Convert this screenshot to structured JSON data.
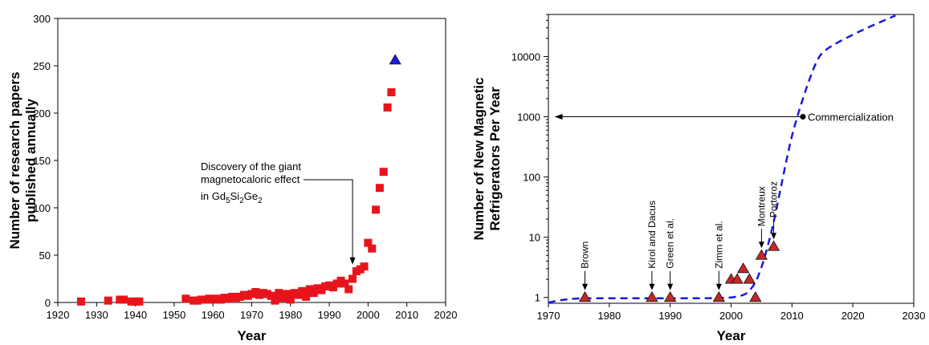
{
  "chart_data": [
    {
      "type": "scatter",
      "xlabel": "Year",
      "ylabel": "Number of research papers published annually",
      "ylabel_lines": [
        "Number of research papers",
        "published annually"
      ],
      "xlim": [
        1920,
        2020
      ],
      "ylim": [
        0,
        300
      ],
      "xticks": [
        1920,
        1930,
        1940,
        1950,
        1960,
        1970,
        1980,
        1990,
        2000,
        2010,
        2020
      ],
      "yticks": [
        0,
        50,
        100,
        150,
        200,
        250,
        300
      ],
      "grid": false,
      "series": [
        {
          "marker": "square",
          "color": "#e8141c",
          "points": [
            [
              1926,
              1
            ],
            [
              1933,
              2
            ],
            [
              1936,
              3
            ],
            [
              1937,
              3
            ],
            [
              1939,
              1
            ],
            [
              1940,
              1
            ],
            [
              1941,
              1
            ],
            [
              1953,
              4
            ],
            [
              1955,
              2
            ],
            [
              1956,
              2
            ],
            [
              1957,
              3
            ],
            [
              1958,
              3
            ],
            [
              1959,
              4
            ],
            [
              1960,
              3
            ],
            [
              1961,
              4
            ],
            [
              1962,
              3
            ],
            [
              1963,
              5
            ],
            [
              1964,
              4
            ],
            [
              1965,
              6
            ],
            [
              1966,
              5
            ],
            [
              1967,
              6
            ],
            [
              1968,
              8
            ],
            [
              1969,
              7
            ],
            [
              1970,
              9
            ],
            [
              1971,
              11
            ],
            [
              1972,
              8
            ],
            [
              1973,
              10
            ],
            [
              1974,
              9
            ],
            [
              1975,
              7
            ],
            [
              1976,
              2
            ],
            [
              1977,
              10
            ],
            [
              1978,
              5
            ],
            [
              1979,
              9
            ],
            [
              1980,
              3
            ],
            [
              1981,
              10
            ],
            [
              1982,
              8
            ],
            [
              1983,
              12
            ],
            [
              1984,
              6
            ],
            [
              1985,
              14
            ],
            [
              1986,
              10
            ],
            [
              1987,
              15
            ],
            [
              1988,
              13
            ],
            [
              1989,
              17
            ],
            [
              1990,
              18
            ],
            [
              1991,
              16
            ],
            [
              1992,
              20
            ],
            [
              1993,
              23
            ],
            [
              1994,
              20
            ],
            [
              1995,
              14
            ],
            [
              1996,
              25
            ],
            [
              1997,
              33
            ],
            [
              1998,
              35
            ],
            [
              1999,
              38
            ],
            [
              2000,
              63
            ],
            [
              2001,
              57
            ],
            [
              2002,
              98
            ],
            [
              2003,
              121
            ],
            [
              2004,
              138
            ],
            [
              2005,
              206
            ],
            [
              2006,
              222
            ]
          ]
        },
        {
          "marker": "triangle",
          "color": "#1a1adb",
          "points": [
            [
              2007,
              256
            ]
          ]
        }
      ],
      "annotation": {
        "lines": [
          "Discovery of the giant",
          "magnetocaloric effect"
        ],
        "formula_prefix": "in Gd",
        "sub1": "5",
        "mid1": "Si",
        "sub2": "2",
        "mid2": "Ge",
        "sub3": "2",
        "arrow_to": [
          1996,
          40
        ]
      }
    },
    {
      "type": "scatter",
      "xlabel": "Year",
      "ylabel": "Number of New Magnetic Refrigerators Per Year",
      "ylabel_lines": [
        "Number of New Magnetic",
        "Refrigerators Per Year"
      ],
      "xlim": [
        1970,
        2030
      ],
      "ylim": [
        0.8,
        50000
      ],
      "yscale": "log",
      "xticks": [
        1970,
        1980,
        1990,
        2000,
        2010,
        2020,
        2030
      ],
      "yticks": [
        1,
        10,
        100,
        1000,
        10000
      ],
      "grid": false,
      "triangles": {
        "color": "#c0282a",
        "points": [
          [
            1976,
            1
          ],
          [
            1987,
            1
          ],
          [
            1990,
            1
          ],
          [
            1998,
            1
          ],
          [
            2000,
            2
          ],
          [
            2001,
            2
          ],
          [
            2002,
            3
          ],
          [
            2003,
            2
          ],
          [
            2004,
            1
          ],
          [
            2005,
            5
          ],
          [
            2007,
            7
          ]
        ]
      },
      "curve": {
        "color": "#1a1adb",
        "style": "dashed",
        "points": [
          [
            1970,
            0.82
          ],
          [
            1972,
            0.9
          ],
          [
            1975,
            0.96
          ],
          [
            1980,
            0.97
          ],
          [
            1985,
            0.97
          ],
          [
            1990,
            0.97
          ],
          [
            1995,
            0.97
          ],
          [
            1998,
            0.98
          ],
          [
            2000,
            1.0
          ],
          [
            2002,
            1.1
          ],
          [
            2003,
            1.3
          ],
          [
            2004,
            1.8
          ],
          [
            2005,
            3.2
          ],
          [
            2006,
            7
          ],
          [
            2007,
            18
          ],
          [
            2008,
            55
          ],
          [
            2009,
            170
          ],
          [
            2010,
            480
          ],
          [
            2011,
            1100
          ],
          [
            2012,
            2300
          ],
          [
            2013,
            4500
          ],
          [
            2014,
            8000
          ],
          [
            2015,
            11500
          ],
          [
            2017,
            16000
          ],
          [
            2020,
            23000
          ],
          [
            2023,
            32000
          ],
          [
            2027,
            48000
          ]
        ]
      },
      "labels": [
        {
          "text": "Brown",
          "x": 1976,
          "y": 1
        },
        {
          "text": "Kirol and Dacus",
          "x": 1987,
          "y": 1
        },
        {
          "text": "Green et al.",
          "x": 1990,
          "y": 1
        },
        {
          "text": "Zimm et al.",
          "x": 1998,
          "y": 1
        },
        {
          "text": "Montreux",
          "x": 2005,
          "y": 5
        },
        {
          "text": "Portoroz",
          "x": 2007,
          "y": 7
        }
      ],
      "commercialization": {
        "text": "Commercialization",
        "x": 2011.8,
        "y": 1000,
        "arrow_to_x": 1971
      }
    }
  ]
}
